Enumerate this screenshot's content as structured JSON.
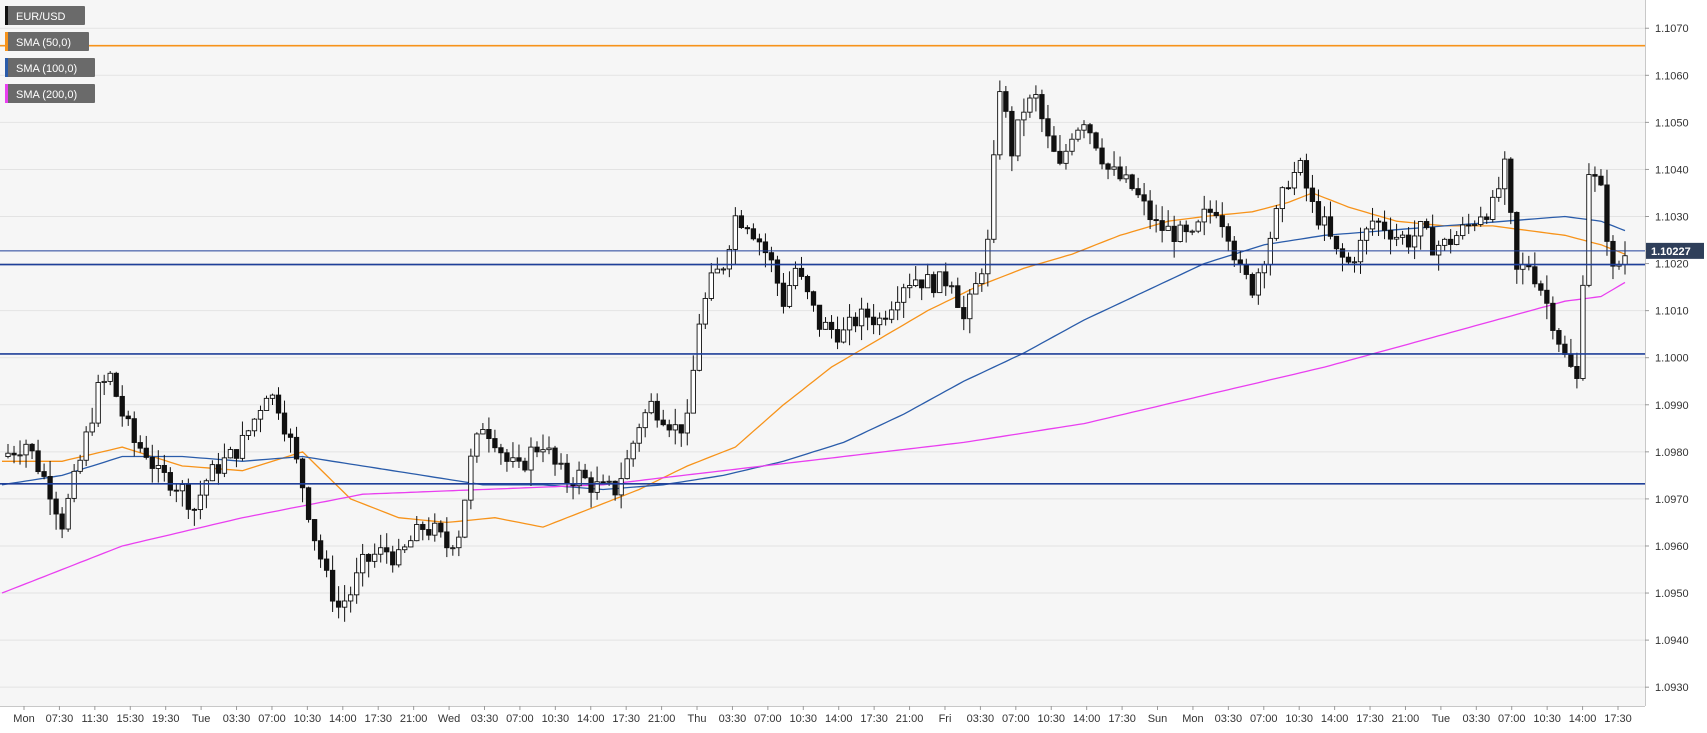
{
  "chart_data": {
    "type": "candlestick",
    "symbol": "EUR/USD",
    "last_price": "1.10227",
    "legend": [
      {
        "label": "EUR/USD",
        "color": "#111111"
      },
      {
        "label": "SMA (50,0)",
        "color": "#f7931a"
      },
      {
        "label": "SMA (100,0)",
        "color": "#2a5caa"
      },
      {
        "label": "SMA (200,0)",
        "color": "#e93ff0"
      }
    ],
    "ylim": [
      1.0926,
      1.1076
    ],
    "y_ticks": [
      "1.0930",
      "1.0940",
      "1.0950",
      "1.0960",
      "1.0970",
      "1.0980",
      "1.0990",
      "1.1000",
      "1.1010",
      "1.1020",
      "1.1030",
      "1.1040",
      "1.1050",
      "1.1060",
      "1.1070"
    ],
    "x_ticks": [
      "Mon",
      "07:30",
      "11:30",
      "15:30",
      "19:30",
      "Tue",
      "03:30",
      "07:00",
      "10:30",
      "14:00",
      "17:30",
      "21:00",
      "Wed",
      "03:30",
      "07:00",
      "10:30",
      "14:00",
      "17:30",
      "21:00",
      "Thu",
      "03:30",
      "07:00",
      "10:30",
      "14:00",
      "17:30",
      "21:00",
      "Fri",
      "03:30",
      "07:00",
      "10:30",
      "14:00",
      "17:30",
      "Sun",
      "Mon",
      "03:30",
      "07:00",
      "10:30",
      "14:00",
      "17:30",
      "21:00",
      "Tue",
      "03:30",
      "07:00",
      "10:30",
      "14:00",
      "17:30"
    ],
    "horizontal_lines": [
      {
        "price": 1.10663,
        "color": "#f7931a"
      },
      {
        "price": 1.10198,
        "color": "#1f3f99"
      },
      {
        "price": 1.10008,
        "color": "#1f3f99"
      },
      {
        "price": 1.09732,
        "color": "#1f3f99"
      },
      {
        "price": 1.10227,
        "color": "#1f3f99"
      }
    ],
    "series": [
      {
        "name": "EUR/USD",
        "points": [
          [
            0,
            1.0979
          ],
          [
            4,
            1.0982
          ],
          [
            8,
            1.0972
          ],
          [
            10,
            1.0965
          ],
          [
            13,
            1.0978
          ],
          [
            16,
            1.0993
          ],
          [
            18,
            1.0996
          ],
          [
            20,
            1.0988
          ],
          [
            22,
            1.0982
          ],
          [
            24,
            1.098
          ],
          [
            26,
            1.0975
          ],
          [
            28,
            1.0974
          ],
          [
            30,
            1.0972
          ],
          [
            32,
            1.0968
          ],
          [
            34,
            1.0974
          ],
          [
            36,
            1.0977
          ],
          [
            38,
            1.0979
          ],
          [
            40,
            1.0982
          ],
          [
            42,
            1.0987
          ],
          [
            44,
            1.0993
          ],
          [
            46,
            1.099
          ],
          [
            48,
            1.0982
          ],
          [
            50,
            1.0973
          ],
          [
            52,
            1.0962
          ],
          [
            54,
            1.0953
          ],
          [
            56,
            1.0947
          ],
          [
            58,
            1.095
          ],
          [
            60,
            1.0956
          ],
          [
            62,
            1.0958
          ],
          [
            64,
            1.0959
          ],
          [
            66,
            1.0957
          ],
          [
            68,
            1.0961
          ],
          [
            70,
            1.0964
          ],
          [
            72,
            1.0963
          ],
          [
            74,
            1.096
          ],
          [
            76,
            1.0963
          ],
          [
            78,
            1.0978
          ],
          [
            80,
            1.0986
          ],
          [
            82,
            1.0983
          ],
          [
            84,
            1.0978
          ],
          [
            86,
            1.0976
          ],
          [
            88,
            1.098
          ],
          [
            90,
            1.0982
          ],
          [
            92,
            1.0977
          ],
          [
            94,
            1.0974
          ],
          [
            96,
            1.0975
          ],
          [
            98,
            1.0973
          ],
          [
            100,
            1.0972
          ],
          [
            102,
            1.0972
          ],
          [
            104,
            1.0978
          ],
          [
            106,
            1.0986
          ],
          [
            108,
            1.099
          ],
          [
            110,
            1.0988
          ],
          [
            112,
            1.0985
          ],
          [
            114,
            1.0986
          ],
          [
            116,
            1.1008
          ],
          [
            118,
            1.1016
          ],
          [
            120,
            1.102
          ],
          [
            122,
            1.103
          ],
          [
            124,
            1.1029
          ],
          [
            126,
            1.1025
          ],
          [
            128,
            1.102
          ],
          [
            130,
            1.1012
          ],
          [
            132,
            1.1019
          ],
          [
            134,
            1.1013
          ],
          [
            136,
            1.1007
          ],
          [
            138,
            1.1006
          ],
          [
            140,
            1.1005
          ],
          [
            142,
            1.1008
          ],
          [
            144,
            1.1009
          ],
          [
            146,
            1.1008
          ],
          [
            148,
            1.1012
          ],
          [
            150,
            1.1016
          ],
          [
            152,
            1.1017
          ],
          [
            154,
            1.1016
          ],
          [
            156,
            1.1016
          ],
          [
            158,
            1.1017
          ],
          [
            160,
            1.1008
          ],
          [
            162,
            1.1015
          ],
          [
            164,
            1.1024
          ],
          [
            166,
            1.1058
          ],
          [
            168,
            1.1044
          ],
          [
            170,
            1.1053
          ],
          [
            172,
            1.1055
          ],
          [
            174,
            1.1046
          ],
          [
            176,
            1.104
          ],
          [
            178,
            1.1048
          ],
          [
            180,
            1.1051
          ],
          [
            182,
            1.1046
          ],
          [
            184,
            1.104
          ],
          [
            186,
            1.1038
          ],
          [
            188,
            1.1036
          ],
          [
            190,
            1.1032
          ],
          [
            192,
            1.1028
          ],
          [
            194,
            1.1027
          ],
          [
            196,
            1.1026
          ],
          [
            198,
            1.1025
          ],
          [
            200,
            1.103
          ],
          [
            202,
            1.1032
          ],
          [
            204,
            1.1027
          ],
          [
            206,
            1.1018
          ],
          [
            208,
            1.1015
          ],
          [
            210,
            1.1022
          ],
          [
            212,
            1.103
          ],
          [
            214,
            1.1038
          ],
          [
            216,
            1.104
          ],
          [
            218,
            1.1032
          ],
          [
            220,
            1.1028
          ],
          [
            222,
            1.1022
          ],
          [
            224,
            1.102
          ],
          [
            226,
            1.1024
          ],
          [
            228,
            1.1029
          ],
          [
            230,
            1.1028
          ],
          [
            232,
            1.1026
          ],
          [
            234,
            1.1025
          ],
          [
            236,
            1.1027
          ],
          [
            238,
            1.1024
          ],
          [
            240,
            1.1024
          ],
          [
            242,
            1.1026
          ],
          [
            244,
            1.1028
          ],
          [
            246,
            1.1031
          ],
          [
            248,
            1.1032
          ],
          [
            250,
            1.104
          ],
          [
            252,
            1.1018
          ],
          [
            254,
            1.102
          ],
          [
            256,
            1.1015
          ],
          [
            258,
            1.1008
          ],
          [
            260,
            1.1
          ],
          [
            262,
            1.0995
          ],
          [
            264,
            1.104
          ],
          [
            266,
            1.1035
          ],
          [
            268,
            1.1018
          ],
          [
            270,
            1.1022
          ]
        ]
      },
      {
        "name": "SMA (50,0)",
        "points": [
          [
            0,
            1.0978
          ],
          [
            10,
            1.0978
          ],
          [
            20,
            1.0981
          ],
          [
            30,
            1.0977
          ],
          [
            40,
            1.0976
          ],
          [
            50,
            1.098
          ],
          [
            58,
            1.097
          ],
          [
            66,
            1.0966
          ],
          [
            74,
            1.0965
          ],
          [
            82,
            1.0966
          ],
          [
            90,
            1.0964
          ],
          [
            98,
            1.0968
          ],
          [
            106,
            1.0972
          ],
          [
            114,
            1.0977
          ],
          [
            122,
            1.0981
          ],
          [
            130,
            1.099
          ],
          [
            138,
            1.0998
          ],
          [
            146,
            1.1004
          ],
          [
            154,
            1.101
          ],
          [
            162,
            1.1015
          ],
          [
            170,
            1.1019
          ],
          [
            178,
            1.1022
          ],
          [
            186,
            1.1026
          ],
          [
            194,
            1.1029
          ],
          [
            200,
            1.103
          ],
          [
            208,
            1.1031
          ],
          [
            214,
            1.1033
          ],
          [
            218,
            1.1035
          ],
          [
            224,
            1.1032
          ],
          [
            232,
            1.1029
          ],
          [
            240,
            1.1028
          ],
          [
            248,
            1.1028
          ],
          [
            254,
            1.1027
          ],
          [
            260,
            1.1026
          ],
          [
            266,
            1.1024
          ],
          [
            270,
            1.1022
          ]
        ]
      },
      {
        "name": "SMA (100,0)",
        "points": [
          [
            0,
            1.0973
          ],
          [
            10,
            1.0975
          ],
          [
            20,
            1.0979
          ],
          [
            30,
            1.0979
          ],
          [
            40,
            1.0978
          ],
          [
            50,
            1.0979
          ],
          [
            60,
            1.0977
          ],
          [
            70,
            1.0975
          ],
          [
            80,
            1.0973
          ],
          [
            90,
            1.0973
          ],
          [
            100,
            1.0972
          ],
          [
            110,
            1.0973
          ],
          [
            120,
            1.0975
          ],
          [
            130,
            1.0978
          ],
          [
            140,
            1.0982
          ],
          [
            150,
            1.0988
          ],
          [
            160,
            1.0995
          ],
          [
            170,
            1.1001
          ],
          [
            180,
            1.1008
          ],
          [
            190,
            1.1014
          ],
          [
            200,
            1.102
          ],
          [
            210,
            1.1024
          ],
          [
            220,
            1.1026
          ],
          [
            230,
            1.1027
          ],
          [
            240,
            1.1028
          ],
          [
            250,
            1.1029
          ],
          [
            260,
            1.103
          ],
          [
            266,
            1.1029
          ],
          [
            270,
            1.1027
          ]
        ]
      },
      {
        "name": "SMA (200,0)",
        "points": [
          [
            0,
            1.095
          ],
          [
            20,
            1.096
          ],
          [
            40,
            1.0966
          ],
          [
            60,
            1.0971
          ],
          [
            80,
            1.0972
          ],
          [
            100,
            1.0973
          ],
          [
            120,
            1.0976
          ],
          [
            140,
            1.0979
          ],
          [
            160,
            1.0982
          ],
          [
            180,
            1.0986
          ],
          [
            200,
            1.0992
          ],
          [
            220,
            1.0998
          ],
          [
            240,
            1.1005
          ],
          [
            260,
            1.1012
          ],
          [
            266,
            1.1013
          ],
          [
            270,
            1.1016
          ]
        ]
      }
    ]
  }
}
